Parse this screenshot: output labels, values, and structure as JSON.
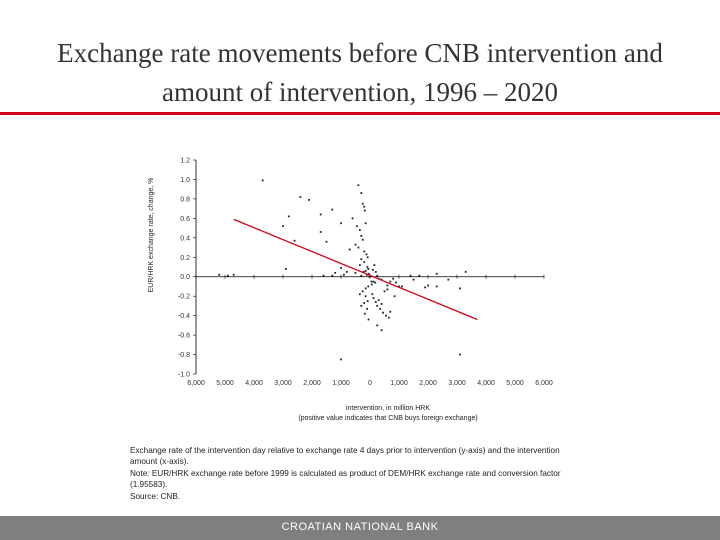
{
  "header": {
    "title_line1": "Exchange rate movements before CNB intervention and",
    "title_line2": "amount of intervention, 1996 – 2020"
  },
  "colors": {
    "accent_rule": "#d0021b",
    "trend": "#d0021b",
    "footer_bg": "#7f7f7f"
  },
  "chart_data": {
    "type": "scatter",
    "title": "",
    "xlabel": "intervention, in million HRK",
    "xlabel_note": "(positive value indicates that CNB buys foreign exchange)",
    "ylabel": "EUR/HRK exchange rate, change, %",
    "xlim": [
      -6000,
      6000
    ],
    "ylim": [
      -1.0,
      1.2
    ],
    "x_ticks": [
      -6000,
      -5000,
      -4000,
      -3000,
      -2000,
      -1000,
      0,
      1000,
      2000,
      3000,
      4000,
      5000,
      6000
    ],
    "x_tick_labels": [
      "6,000",
      "5,000",
      "4,000",
      "3,000",
      "2,000",
      "1,000",
      "0",
      "1,000",
      "2,000",
      "3,000",
      "4,000",
      "5,000",
      "6,000"
    ],
    "y_ticks": [
      -1.0,
      -0.8,
      -0.6,
      -0.4,
      -0.2,
      0.0,
      0.2,
      0.4,
      0.6,
      0.8,
      1.0,
      1.2
    ],
    "y_tick_labels": [
      "-1.0",
      "-0.8",
      "-0.6",
      "-0.4",
      "-0.2",
      "0.0",
      "0.2",
      "0.4",
      "0.6",
      "0.8",
      "1.0",
      "1.2"
    ],
    "trend_line": {
      "x": [
        -4700,
        3700
      ],
      "y": [
        0.59,
        -0.44
      ]
    },
    "points": [
      [
        -3700,
        0.99
      ],
      [
        -2400,
        0.82
      ],
      [
        -2100,
        0.79
      ],
      [
        -1300,
        0.69
      ],
      [
        -2800,
        0.62
      ],
      [
        -1700,
        0.64
      ],
      [
        -1000,
        0.55
      ],
      [
        -3000,
        0.52
      ],
      [
        -1700,
        0.46
      ],
      [
        -1500,
        0.36
      ],
      [
        -2600,
        0.37
      ],
      [
        -2900,
        0.08
      ],
      [
        -1200,
        0.04
      ],
      [
        -1000,
        0.09
      ],
      [
        -800,
        0.05
      ],
      [
        -4700,
        0.02
      ],
      [
        -4900,
        0.01
      ],
      [
        -1600,
        0.01
      ],
      [
        -1300,
        0.01
      ],
      [
        -900,
        0.02
      ],
      [
        -400,
        0.94
      ],
      [
        -300,
        0.86
      ],
      [
        -250,
        0.75
      ],
      [
        -200,
        0.72
      ],
      [
        -180,
        0.68
      ],
      [
        -150,
        0.55
      ],
      [
        -450,
        0.52
      ],
      [
        -350,
        0.48
      ],
      [
        -300,
        0.42
      ],
      [
        -250,
        0.38
      ],
      [
        -500,
        0.33
      ],
      [
        -400,
        0.3
      ],
      [
        -700,
        0.28
      ],
      [
        -200,
        0.26
      ],
      [
        -120,
        0.23
      ],
      [
        -80,
        0.2
      ],
      [
        -300,
        0.18
      ],
      [
        -200,
        0.15
      ],
      [
        -350,
        0.12
      ],
      [
        -90,
        0.1
      ],
      [
        -60,
        0.08
      ],
      [
        -150,
        0.06
      ],
      [
        -220,
        0.05
      ],
      [
        -500,
        0.04
      ],
      [
        -40,
        0.03
      ],
      [
        -110,
        0.02
      ],
      [
        -300,
        0.01
      ],
      [
        -20,
        0.0
      ],
      [
        100,
        0.07
      ],
      [
        150,
        0.12
      ],
      [
        200,
        0.05
      ],
      [
        250,
        0.01
      ],
      [
        300,
        -0.02
      ],
      [
        400,
        -0.03
      ],
      [
        120,
        -0.05
      ],
      [
        180,
        -0.06
      ],
      [
        60,
        -0.08
      ],
      [
        -60,
        -0.1
      ],
      [
        -150,
        -0.12
      ],
      [
        -250,
        -0.15
      ],
      [
        -350,
        -0.18
      ],
      [
        -150,
        -0.2
      ],
      [
        -80,
        -0.25
      ],
      [
        -200,
        -0.27
      ],
      [
        -300,
        -0.3
      ],
      [
        -100,
        -0.33
      ],
      [
        -180,
        -0.38
      ],
      [
        -50,
        -0.44
      ],
      [
        50,
        -0.05
      ],
      [
        80,
        -0.18
      ],
      [
        120,
        -0.22
      ],
      [
        200,
        -0.26
      ],
      [
        250,
        -0.3
      ],
      [
        350,
        -0.33
      ],
      [
        450,
        -0.37
      ],
      [
        550,
        -0.4
      ],
      [
        650,
        -0.42
      ],
      [
        700,
        -0.36
      ],
      [
        400,
        -0.28
      ],
      [
        300,
        -0.24
      ],
      [
        500,
        -0.15
      ],
      [
        600,
        -0.09
      ],
      [
        700,
        -0.05
      ],
      [
        800,
        -0.02
      ],
      [
        900,
        -0.06
      ],
      [
        1000,
        -0.1
      ],
      [
        850,
        -0.2
      ],
      [
        400,
        -0.55
      ],
      [
        250,
        -0.5
      ],
      [
        600,
        -0.13
      ],
      [
        1100,
        -0.1
      ],
      [
        1500,
        -0.03
      ],
      [
        1400,
        0.01
      ],
      [
        1900,
        -0.11
      ],
      [
        2000,
        -0.09
      ],
      [
        2300,
        -0.1
      ],
      [
        2700,
        -0.03
      ],
      [
        2300,
        0.03
      ],
      [
        1700,
        0.01
      ],
      [
        3100,
        -0.12
      ],
      [
        3300,
        0.05
      ],
      [
        3100,
        -0.8
      ],
      [
        -1000,
        -0.85
      ],
      [
        -5200,
        0.02
      ],
      [
        -600,
        0.6
      ]
    ]
  },
  "note": {
    "line1": "Exchange rate of the intervention day relative to exchange rate 4 days prior to intervention (y-axis) and the intervention",
    "line2": "amount (x-axis).",
    "line3": "Note: EUR/HRK exchange rate before 1999 is calculated as product of DEM/HRK exchange rate and conversion factor",
    "line4": "(1.95583).",
    "line5": "Source: CNB."
  },
  "footer": {
    "label": "CROATIAN NATIONAL BANK"
  }
}
